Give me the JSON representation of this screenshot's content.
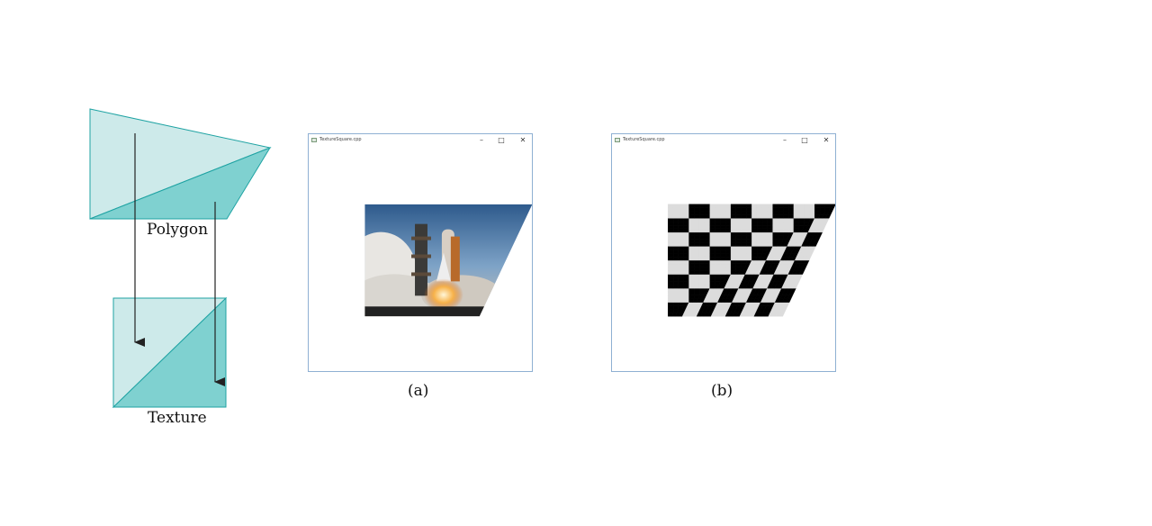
{
  "labels": {
    "polygon": "Polygon",
    "texture": "Texture",
    "caption_a": "(a)",
    "caption_b": "(b)"
  },
  "windows": [
    {
      "title": "TextureSquare.cpp",
      "content": "rocket-launch-photo",
      "controls": {
        "minimize": "–",
        "maximize": "□",
        "close": "✕"
      }
    },
    {
      "title": "TextureSquare.cpp",
      "content": "checkerboard",
      "controls": {
        "minimize": "–",
        "maximize": "□",
        "close": "✕"
      }
    }
  ],
  "colors": {
    "light_teal": "#cdeaea",
    "mid_teal": "#7fd1d0",
    "edge_teal": "#1fa3a3",
    "arrow": "#222222",
    "window_border": "#8fb0d3",
    "checker_dark": "#000000",
    "checker_light": "#dcdcdc"
  },
  "icons": [
    "app-icon",
    "minimize-icon",
    "maximize-icon",
    "close-icon",
    "arrow-down-icon"
  ]
}
